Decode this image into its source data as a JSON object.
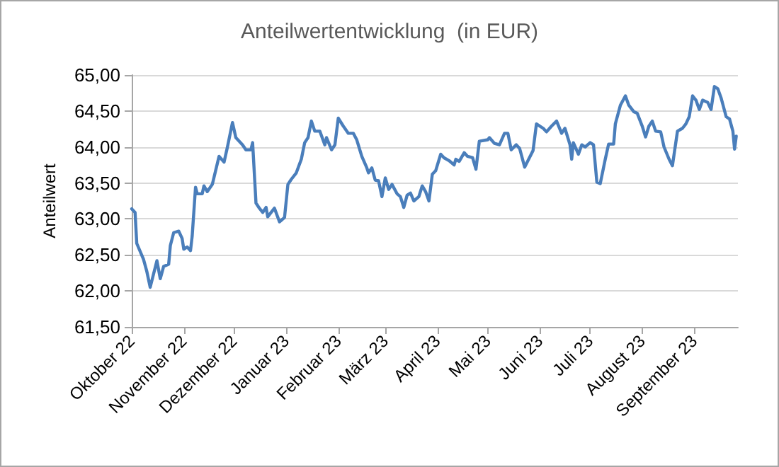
{
  "chart_data": {
    "type": "line",
    "title": "Anteilwertentwicklung  (in EUR)",
    "ylabel": "Anteilwert",
    "x": [
      "2022-10-01",
      "2022-10-03",
      "2022-10-04",
      "2022-10-08",
      "2022-10-10",
      "2022-10-12",
      "2022-10-16",
      "2022-10-18",
      "2022-10-20",
      "2022-10-23",
      "2022-10-24",
      "2022-10-26",
      "2022-10-29",
      "2022-10-31",
      "2022-11-01",
      "2022-11-03",
      "2022-11-05",
      "2022-11-06",
      "2022-11-08",
      "2022-11-09",
      "2022-11-12",
      "2022-11-13",
      "2022-11-15",
      "2022-11-18",
      "2022-11-22",
      "2022-11-25",
      "2022-11-27",
      "2022-11-30",
      "2022-12-02",
      "2022-12-06",
      "2022-12-08",
      "2022-12-11",
      "2022-12-12",
      "2022-12-14",
      "2022-12-16",
      "2022-12-18",
      "2022-12-20",
      "2022-12-21",
      "2022-12-25",
      "2022-12-28",
      "2022-12-31",
      "2023-01-02",
      "2023-01-04",
      "2023-01-07",
      "2023-01-10",
      "2023-01-12",
      "2023-01-14",
      "2023-01-16",
      "2023-01-18",
      "2023-01-21",
      "2023-01-24",
      "2023-01-25",
      "2023-01-28",
      "2023-01-30",
      "2023-02-01",
      "2023-02-04",
      "2023-02-07",
      "2023-02-10",
      "2023-02-12",
      "2023-02-15",
      "2023-02-18",
      "2023-02-19",
      "2023-02-21",
      "2023-02-23",
      "2023-02-25",
      "2023-02-27",
      "2023-03-01",
      "2023-03-03",
      "2023-03-05",
      "2023-03-08",
      "2023-03-10",
      "2023-03-12",
      "2023-03-14",
      "2023-03-16",
      "2023-03-18",
      "2023-03-21",
      "2023-03-23",
      "2023-03-25",
      "2023-03-27",
      "2023-03-29",
      "2023-03-31",
      "2023-04-03",
      "2023-04-05",
      "2023-04-08",
      "2023-04-11",
      "2023-04-12",
      "2023-04-14",
      "2023-04-17",
      "2023-04-19",
      "2023-04-22",
      "2023-04-24",
      "2023-04-26",
      "2023-05-01",
      "2023-05-02",
      "2023-05-05",
      "2023-05-08",
      "2023-05-11",
      "2023-05-13",
      "2023-05-15",
      "2023-05-18",
      "2023-05-20",
      "2023-05-23",
      "2023-05-28",
      "2023-05-30",
      "2023-06-03",
      "2023-06-05",
      "2023-06-08",
      "2023-06-11",
      "2023-06-14",
      "2023-06-16",
      "2023-06-19",
      "2023-06-20",
      "2023-06-21",
      "2023-06-24",
      "2023-06-26",
      "2023-06-28",
      "2023-07-01",
      "2023-07-03",
      "2023-07-05",
      "2023-07-07",
      "2023-07-10",
      "2023-07-12",
      "2023-07-15",
      "2023-07-16",
      "2023-07-19",
      "2023-07-22",
      "2023-07-24",
      "2023-07-27",
      "2023-07-29",
      "2023-08-01",
      "2023-08-03",
      "2023-08-05",
      "2023-08-07",
      "2023-08-09",
      "2023-08-12",
      "2023-08-14",
      "2023-08-17",
      "2023-08-19",
      "2023-08-22",
      "2023-08-25",
      "2023-08-27",
      "2023-08-29",
      "2023-08-31",
      "2023-09-02",
      "2023-09-04",
      "2023-09-06",
      "2023-09-09",
      "2023-09-11",
      "2023-09-13",
      "2023-09-15",
      "2023-09-17",
      "2023-09-20",
      "2023-09-22",
      "2023-09-24",
      "2023-09-25",
      "2023-09-26"
    ],
    "series": [
      {
        "color": "#4a7ebb",
        "values": [
          63.14,
          63.09,
          62.66,
          62.44,
          62.27,
          62.05,
          62.42,
          62.17,
          62.34,
          62.37,
          62.63,
          62.81,
          62.83,
          62.73,
          62.58,
          62.61,
          62.56,
          62.76,
          63.44,
          63.35,
          63.35,
          63.46,
          63.38,
          63.48,
          63.87,
          63.79,
          64.0,
          64.34,
          64.13,
          64.03,
          63.96,
          63.96,
          64.06,
          63.22,
          63.15,
          63.09,
          63.16,
          63.03,
          63.15,
          62.96,
          63.02,
          63.48,
          63.55,
          63.64,
          63.83,
          64.06,
          64.13,
          64.36,
          64.22,
          64.22,
          64.03,
          64.13,
          63.96,
          64.03,
          64.4,
          64.29,
          64.19,
          64.19,
          64.1,
          63.87,
          63.71,
          63.64,
          63.71,
          63.54,
          63.53,
          63.31,
          63.57,
          63.41,
          63.48,
          63.35,
          63.31,
          63.16,
          63.33,
          63.36,
          63.25,
          63.31,
          63.46,
          63.38,
          63.25,
          63.62,
          63.67,
          63.9,
          63.85,
          63.81,
          63.75,
          63.83,
          63.8,
          63.92,
          63.87,
          63.85,
          63.69,
          64.08,
          64.1,
          64.13,
          64.05,
          64.03,
          64.19,
          64.19,
          63.96,
          64.03,
          63.98,
          63.72,
          63.95,
          64.32,
          64.26,
          64.21,
          64.29,
          64.36,
          64.19,
          64.26,
          64.03,
          63.83,
          64.06,
          63.9,
          64.03,
          64.0,
          64.06,
          64.03,
          63.51,
          63.49,
          63.83,
          64.04,
          64.04,
          64.32,
          64.58,
          64.71,
          64.58,
          64.49,
          64.47,
          64.29,
          64.14,
          64.29,
          64.36,
          64.22,
          64.21,
          64.0,
          63.83,
          63.74,
          64.22,
          64.26,
          64.32,
          64.42,
          64.71,
          64.65,
          64.52,
          64.65,
          64.62,
          64.52,
          64.84,
          64.81,
          64.68,
          64.42,
          64.39,
          64.22,
          63.97,
          64.15
        ]
      }
    ],
    "xlim": [
      "2022-10-01",
      "2023-09-27"
    ],
    "xticks": [
      {
        "value": "2022-10-01",
        "label": "Oktober 22"
      },
      {
        "value": "2022-11-01",
        "label": "November 22"
      },
      {
        "value": "2022-12-01",
        "label": "Dezember 22"
      },
      {
        "value": "2023-01-01",
        "label": "Januar 23"
      },
      {
        "value": "2023-02-01",
        "label": "Februar 23"
      },
      {
        "value": "2023-03-01",
        "label": "März 23"
      },
      {
        "value": "2023-04-01",
        "label": "April 23"
      },
      {
        "value": "2023-05-01",
        "label": "Mai 23"
      },
      {
        "value": "2023-06-01",
        "label": "Juni 23"
      },
      {
        "value": "2023-07-01",
        "label": "Juli 23"
      },
      {
        "value": "2023-08-01",
        "label": "August 23"
      },
      {
        "value": "2023-09-01",
        "label": "September 23"
      }
    ],
    "ylim": [
      61.5,
      65
    ],
    "yticks": [
      {
        "value": 61.5,
        "label": "61,50"
      },
      {
        "value": 62,
        "label": "62,00"
      },
      {
        "value": 62.5,
        "label": "62,50"
      },
      {
        "value": 63,
        "label": "63,00"
      },
      {
        "value": 63.5,
        "label": "63,50"
      },
      {
        "value": 64,
        "label": "64,00"
      },
      {
        "value": 64.5,
        "label": "64,50"
      },
      {
        "value": 65,
        "label": "65,00"
      }
    ],
    "grid": "y",
    "marker": "none",
    "line_style": "solid"
  }
}
